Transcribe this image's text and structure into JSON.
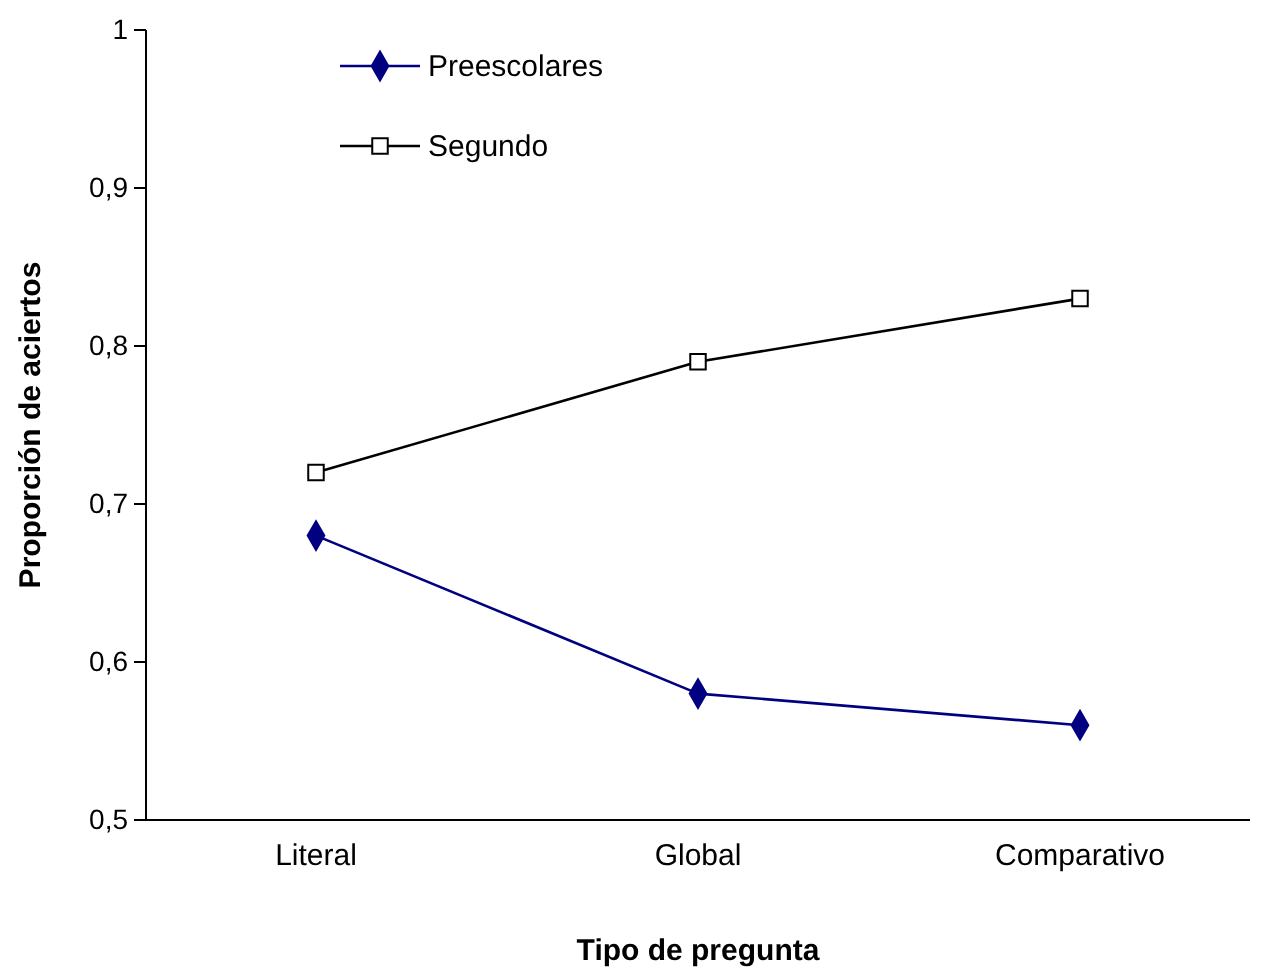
{
  "chart_data": {
    "type": "line",
    "xlabel": "Tipo de pregunta",
    "ylabel": "Proporción de aciertos",
    "categories": [
      "Literal",
      "Global",
      "Comparativo"
    ],
    "series": [
      {
        "name": "Preescolares",
        "color": "#000080",
        "marker": "diamond",
        "values": [
          0.68,
          0.58,
          0.56
        ]
      },
      {
        "name": "Segundo",
        "color": "#000000",
        "marker": "square",
        "values": [
          0.72,
          0.79,
          0.83
        ]
      }
    ],
    "ylim": [
      0.5,
      1
    ],
    "yticks": [
      {
        "value": 0.5,
        "label": "0,5"
      },
      {
        "value": 0.6,
        "label": "0,6"
      },
      {
        "value": 0.7,
        "label": "0,7"
      },
      {
        "value": 0.8,
        "label": "0,8"
      },
      {
        "value": 0.9,
        "label": "0,9"
      },
      {
        "value": 1,
        "label": "1"
      }
    ],
    "grid": false,
    "legend": "top left"
  }
}
